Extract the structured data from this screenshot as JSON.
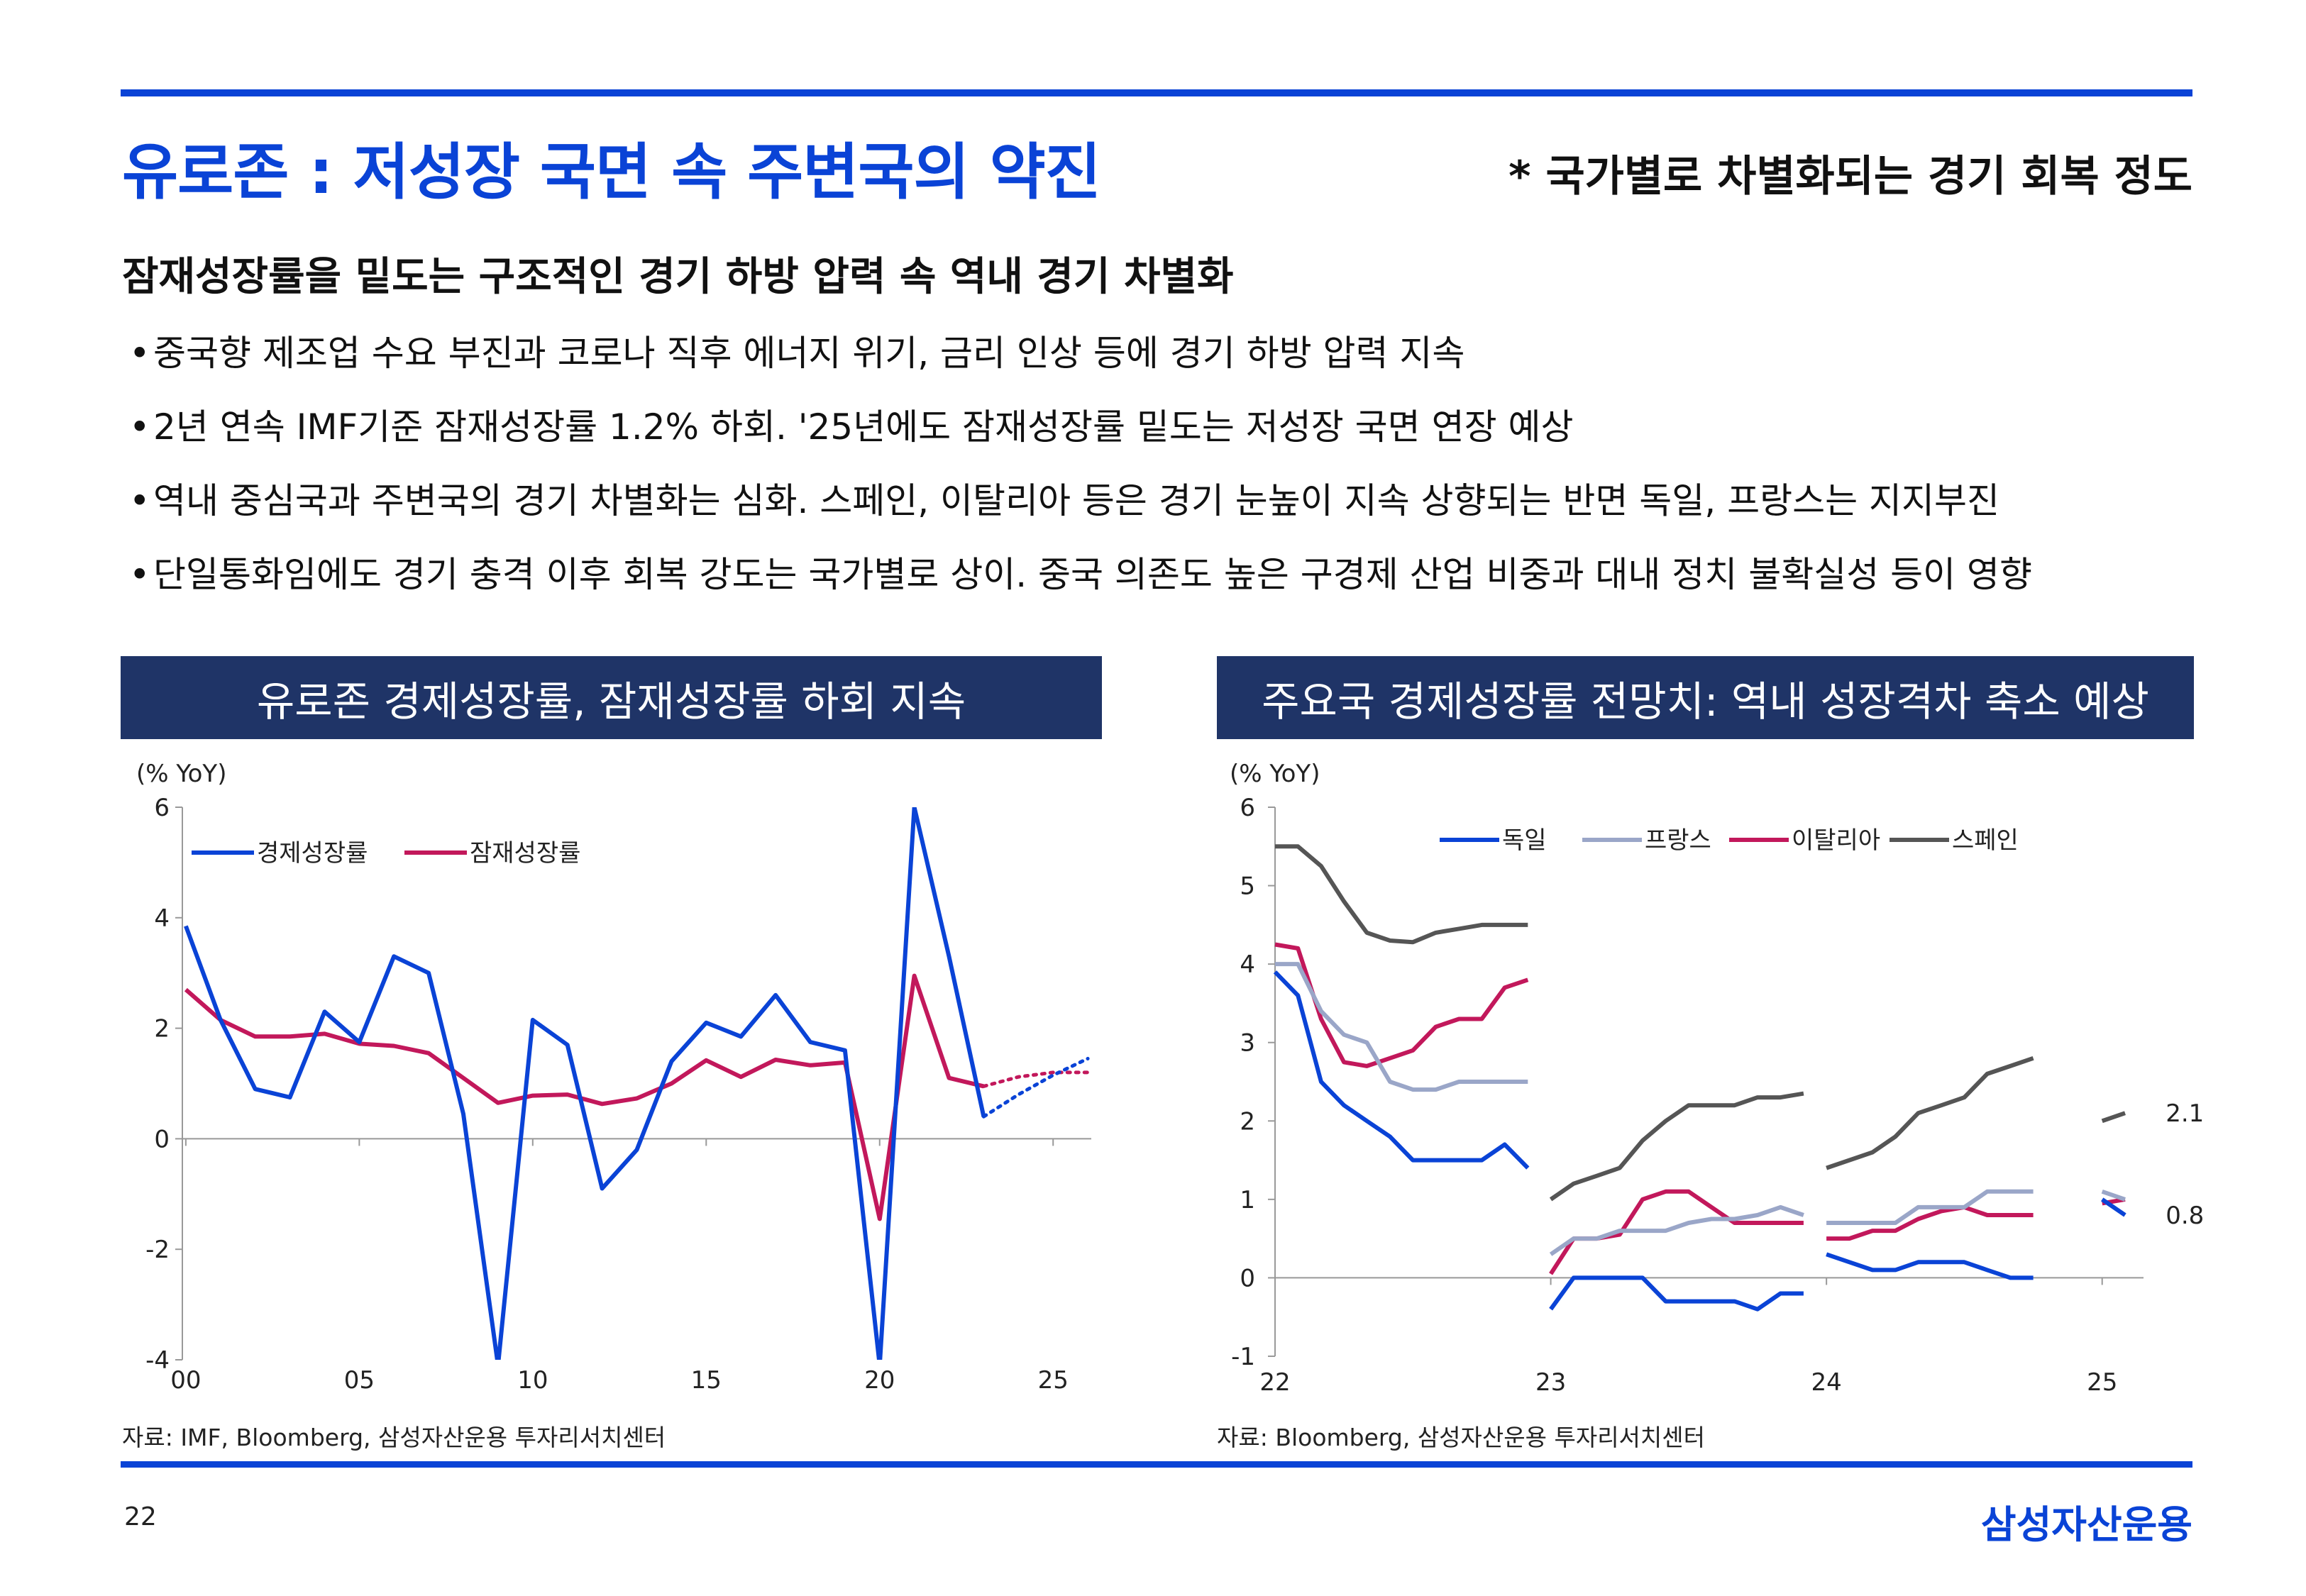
{
  "header": {
    "title": "유로존 : 저성장 국면 속 주변국의 약진",
    "subnote": "* 국가별로 차별화되는 경기 회복 정도"
  },
  "headline": "잠재성장률을 밑도는 구조적인 경기 하방 압력 속 역내 경기 차별화",
  "bullets": [
    "중국향 제조업 수요 부진과 코로나 직후 에너지 위기, 금리 인상 등에 경기 하방 압력 지속",
    "2년 연속 IMF기준 잠재성장률 1.2% 하회. '25년에도 잠재성장률 밑도는 저성장 국면 연장 예상",
    "역내 중심국과 주변국의 경기 차별화는 심화. 스페인, 이탈리아 등은 경기 눈높이 지속 상향되는 반면 독일, 프랑스는 지지부진",
    "단일통화임에도 경기 충격 이후 회복 강도는 국가별로 상이. 중국 의존도 높은 구경제 산업 비중과 대내 정치 불확실성 등이 영향"
  ],
  "bullet_mark": "•",
  "footer": {
    "page": "22",
    "brand": "삼성자산운용"
  },
  "colors": {
    "accent": "#0a43d6",
    "navy": "#1f3467",
    "blue": "#0a43d6",
    "magenta": "#c2185b",
    "gray": "#9aa6c8",
    "dark": "#555555"
  },
  "chart_data": [
    {
      "type": "line",
      "title": "유로존 경제성장률, 잠재성장률 하회 지속",
      "ylabel": "(% YoY)",
      "ylim": [
        -4,
        6
      ],
      "yticks": [
        "6",
        "4",
        "2",
        "0",
        "-2",
        "-4"
      ],
      "xticks": [
        "00",
        "05",
        "10",
        "15",
        "20",
        "25"
      ],
      "source": "자료: IMF, Bloomberg, 삼성자산운용 투자리서치센터",
      "series": [
        {
          "name": "경제성장률",
          "color": "#0a43d6",
          "x": [
            2000,
            2001,
            2002,
            2003,
            2004,
            2005,
            2006,
            2007,
            2008,
            2009,
            2010,
            2011,
            2012,
            2013,
            2014,
            2015,
            2016,
            2017,
            2018,
            2019,
            2020,
            2021,
            2022,
            2023
          ],
          "values": [
            3.85,
            2.15,
            0.9,
            0.75,
            2.3,
            1.75,
            3.3,
            3.0,
            0.45,
            -4.1,
            2.15,
            1.7,
            -0.9,
            -0.2,
            1.4,
            2.1,
            1.85,
            2.6,
            1.75,
            1.6,
            -4.1,
            6.0,
            3.3,
            0.4
          ],
          "forecast": {
            "x": [
              2023,
              2024,
              2025,
              2026
            ],
            "values": [
              0.4,
              0.8,
              1.15,
              1.45
            ]
          }
        },
        {
          "name": "잠재성장률",
          "color": "#c2185b",
          "x": [
            2000,
            2001,
            2002,
            2003,
            2004,
            2005,
            2006,
            2007,
            2008,
            2009,
            2010,
            2011,
            2012,
            2013,
            2014,
            2015,
            2016,
            2017,
            2018,
            2019,
            2020,
            2021,
            2022,
            2023
          ],
          "values": [
            2.7,
            2.15,
            1.85,
            1.85,
            1.9,
            1.72,
            1.68,
            1.55,
            1.1,
            0.65,
            0.78,
            0.8,
            0.63,
            0.73,
            1.0,
            1.42,
            1.12,
            1.43,
            1.33,
            1.38,
            -1.45,
            2.95,
            1.1,
            0.95
          ],
          "forecast": {
            "x": [
              2023,
              2024,
              2025,
              2026
            ],
            "values": [
              0.95,
              1.12,
              1.2,
              1.2
            ]
          }
        }
      ]
    },
    {
      "type": "line",
      "title": "주요국 경제성장률 전망치: 역내 성장격차 축소 예상",
      "ylabel": "(% YoY)",
      "ylim": [
        -1,
        6
      ],
      "yticks": [
        "6",
        "5",
        "4",
        "3",
        "2",
        "1",
        "0",
        "-1"
      ],
      "xticks": [
        "22",
        "23",
        "24",
        "25"
      ],
      "source": "자료: Bloomberg, 삼성자산운용 투자리서치센터",
      "annotations": [
        {
          "text": "2.1",
          "x": 25.3,
          "y": 2.1
        },
        {
          "text": "0.8",
          "x": 25.3,
          "y": 0.8
        }
      ],
      "series": [
        {
          "name": "독일",
          "color": "#0a43d6",
          "segments": [
            {
              "x": [
                22.0,
                22.083,
                22.167,
                22.25,
                22.333,
                22.417,
                22.5,
                22.583,
                22.667,
                22.75,
                22.833,
                22.917
              ],
              "values": [
                3.9,
                3.6,
                2.5,
                2.2,
                2.0,
                1.8,
                1.5,
                1.5,
                1.5,
                1.5,
                1.7,
                1.4
              ]
            },
            {
              "x": [
                23.0,
                23.083,
                23.167,
                23.25,
                23.333,
                23.417,
                23.5,
                23.583,
                23.667,
                23.75,
                23.833,
                23.917
              ],
              "values": [
                -0.4,
                0.0,
                0.0,
                0.0,
                0.0,
                -0.3,
                -0.3,
                -0.3,
                -0.3,
                -0.4,
                -0.2,
                -0.2
              ]
            },
            {
              "x": [
                24.0,
                24.083,
                24.167,
                24.25,
                24.333,
                24.417,
                24.5,
                24.583,
                24.667,
                24.75
              ],
              "values": [
                0.3,
                0.2,
                0.1,
                0.1,
                0.2,
                0.2,
                0.2,
                0.1,
                0.0,
                0.0
              ]
            },
            {
              "x": [
                25.0,
                25.083
              ],
              "values": [
                1.0,
                0.8
              ]
            }
          ]
        },
        {
          "name": "프랑스",
          "color": "#9aa6c8",
          "segments": [
            {
              "x": [
                22.0,
                22.083,
                22.167,
                22.25,
                22.333,
                22.417,
                22.5,
                22.583,
                22.667,
                22.75,
                22.833,
                22.917
              ],
              "values": [
                4.0,
                4.0,
                3.4,
                3.1,
                3.0,
                2.5,
                2.4,
                2.4,
                2.5,
                2.5,
                2.5,
                2.5
              ]
            },
            {
              "x": [
                23.0,
                23.083,
                23.167,
                23.25,
                23.333,
                23.417,
                23.5,
                23.583,
                23.667,
                23.75,
                23.833,
                23.917
              ],
              "values": [
                0.3,
                0.5,
                0.5,
                0.6,
                0.6,
                0.6,
                0.7,
                0.75,
                0.75,
                0.8,
                0.9,
                0.8
              ]
            },
            {
              "x": [
                24.0,
                24.083,
                24.167,
                24.25,
                24.333,
                24.417,
                24.5,
                24.583,
                24.667,
                24.75
              ],
              "values": [
                0.7,
                0.7,
                0.7,
                0.7,
                0.9,
                0.9,
                0.9,
                1.1,
                1.1,
                1.1
              ]
            },
            {
              "x": [
                25.0,
                25.083
              ],
              "values": [
                1.1,
                1.0
              ]
            }
          ]
        },
        {
          "name": "이탈리아",
          "color": "#c2185b",
          "segments": [
            {
              "x": [
                22.0,
                22.083,
                22.167,
                22.25,
                22.333,
                22.417,
                22.5,
                22.583,
                22.667,
                22.75,
                22.833,
                22.917
              ],
              "values": [
                4.25,
                4.2,
                3.3,
                2.75,
                2.7,
                2.8,
                2.9,
                3.2,
                3.3,
                3.3,
                3.7,
                3.8
              ]
            },
            {
              "x": [
                23.0,
                23.083,
                23.167,
                23.25,
                23.333,
                23.417,
                23.5,
                23.583,
                23.667,
                23.75,
                23.833,
                23.917
              ],
              "values": [
                0.05,
                0.5,
                0.5,
                0.55,
                1.0,
                1.1,
                1.1,
                0.9,
                0.7,
                0.7,
                0.7,
                0.7
              ]
            },
            {
              "x": [
                24.0,
                24.083,
                24.167,
                24.25,
                24.333,
                24.417,
                24.5,
                24.583,
                24.667,
                24.75
              ],
              "values": [
                0.5,
                0.5,
                0.6,
                0.6,
                0.75,
                0.85,
                0.9,
                0.8,
                0.8,
                0.8
              ]
            },
            {
              "x": [
                25.0,
                25.083
              ],
              "values": [
                0.95,
                1.0
              ]
            }
          ]
        },
        {
          "name": "스페인",
          "color": "#555555",
          "segments": [
            {
              "x": [
                22.0,
                22.083,
                22.167,
                22.25,
                22.333,
                22.417,
                22.5,
                22.583,
                22.667,
                22.75,
                22.833,
                22.917
              ],
              "values": [
                5.5,
                5.5,
                5.25,
                4.8,
                4.4,
                4.3,
                4.28,
                4.4,
                4.45,
                4.5,
                4.5,
                4.5
              ]
            },
            {
              "x": [
                23.0,
                23.083,
                23.167,
                23.25,
                23.333,
                23.417,
                23.5,
                23.583,
                23.667,
                23.75,
                23.833,
                23.917
              ],
              "values": [
                1.0,
                1.2,
                1.3,
                1.4,
                1.75,
                2.0,
                2.2,
                2.2,
                2.2,
                2.3,
                2.3,
                2.35
              ]
            },
            {
              "x": [
                24.0,
                24.083,
                24.167,
                24.25,
                24.333,
                24.417,
                24.5,
                24.583,
                24.667,
                24.75
              ],
              "values": [
                1.4,
                1.5,
                1.6,
                1.8,
                2.1,
                2.2,
                2.3,
                2.6,
                2.7,
                2.8
              ]
            },
            {
              "x": [
                25.0,
                25.083
              ],
              "values": [
                2.0,
                2.1
              ]
            }
          ]
        }
      ]
    }
  ]
}
